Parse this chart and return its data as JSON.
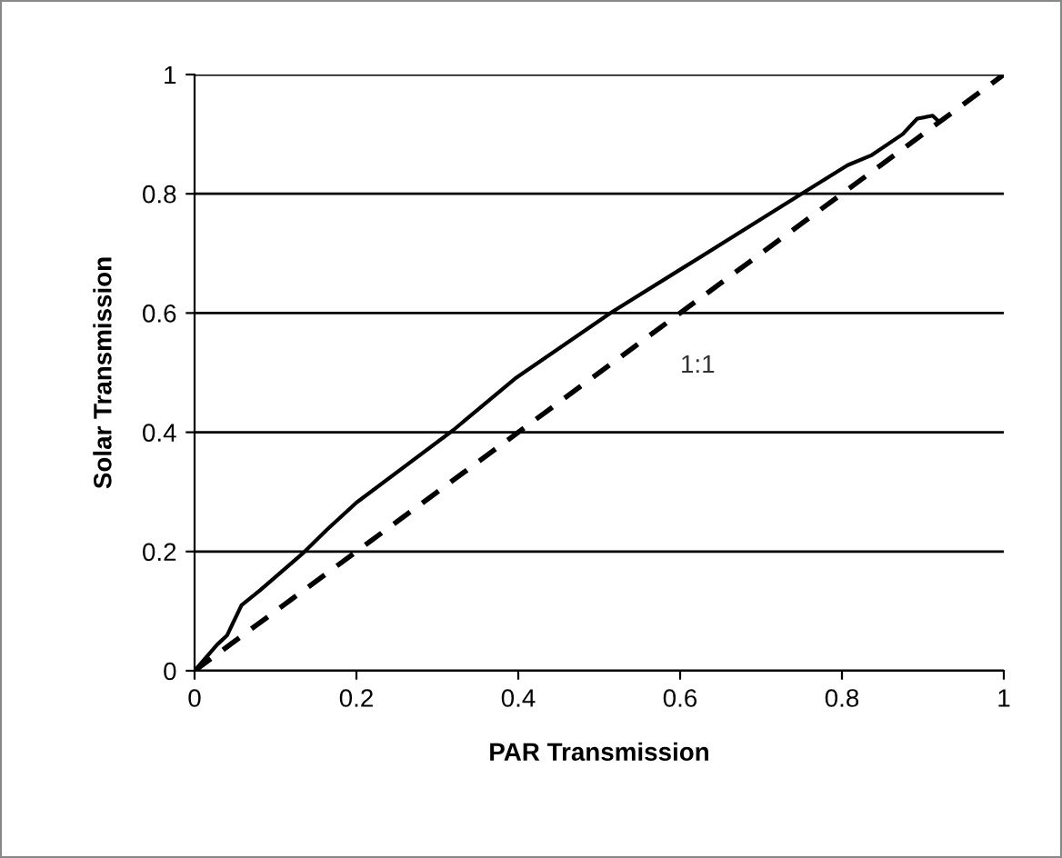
{
  "chart_data": {
    "type": "line",
    "xlabel": "PAR Transmission",
    "ylabel": "Solar Transmission",
    "xlim": [
      0,
      1
    ],
    "ylim": [
      0,
      1
    ],
    "xticks": [
      0,
      0.2,
      0.4,
      0.6,
      0.8,
      1
    ],
    "yticks": [
      0,
      0.2,
      0.4,
      0.6,
      0.8,
      1
    ],
    "grid": "y",
    "series": [
      {
        "color": "#000000",
        "line_style": "solid",
        "x": [
          0,
          0.028,
          0.04,
          0.058,
          0.081,
          0.133,
          0.163,
          0.2,
          0.32,
          0.396,
          0.515,
          0.605,
          0.755,
          0.807,
          0.837,
          0.875,
          0.893,
          0.912,
          0.92
        ],
        "values": [
          0,
          0.044,
          0.059,
          0.11,
          0.135,
          0.196,
          0.236,
          0.282,
          0.404,
          0.49,
          0.601,
          0.677,
          0.804,
          0.848,
          0.865,
          0.9,
          0.926,
          0.931,
          0.921
        ]
      },
      {
        "color": "#000000",
        "line_style": "dashed",
        "x": [
          0,
          1
        ],
        "values": [
          0,
          1
        ]
      }
    ],
    "annotations": [
      "1:1"
    ]
  }
}
